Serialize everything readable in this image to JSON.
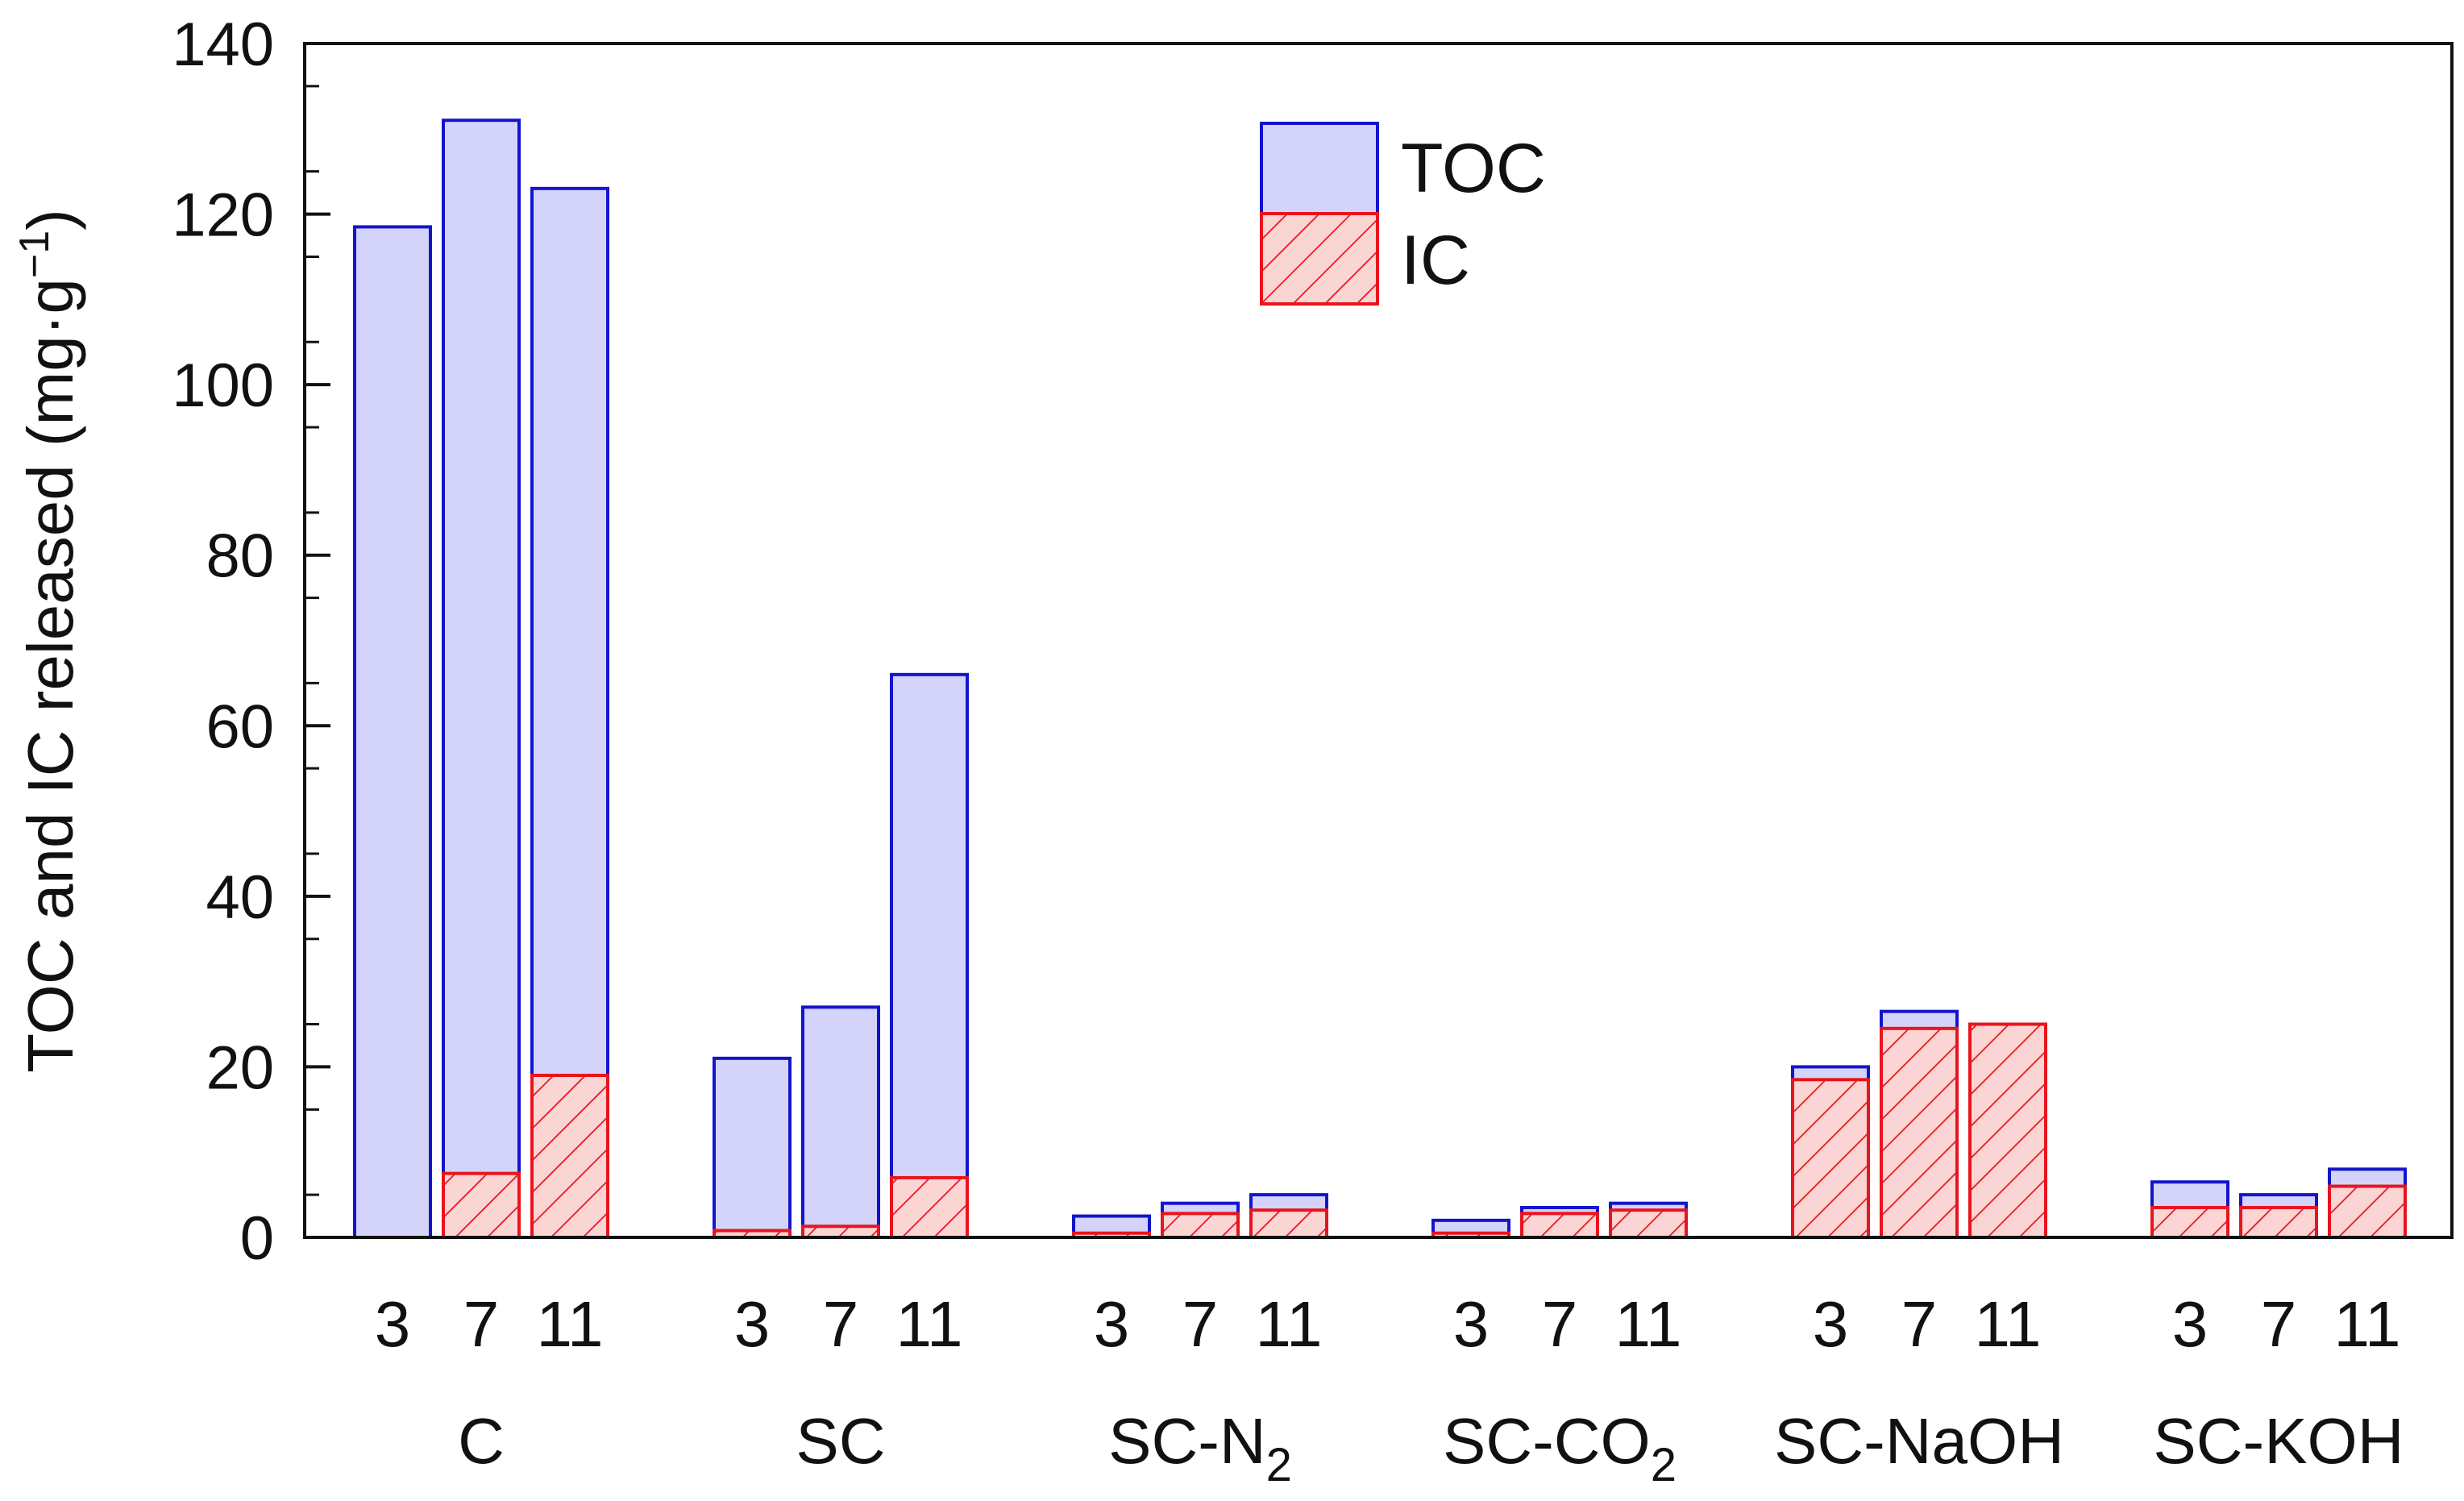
{
  "chart_data": {
    "type": "bar",
    "ylabel": "TOC and IC released (mg·g⁻¹)",
    "ylim": [
      0,
      140
    ],
    "yticks": [
      0,
      20,
      40,
      60,
      80,
      100,
      120,
      140
    ],
    "grid": false,
    "legend_position": "top-center",
    "positions": [
      "3",
      "7",
      "11"
    ],
    "groups": [
      {
        "label": "C",
        "name": "C",
        "sub": ""
      },
      {
        "label": "SC",
        "name": "SC",
        "sub": ""
      },
      {
        "label": "SC-N2",
        "name": "SC-N",
        "sub": "2"
      },
      {
        "label": "SC-CO2",
        "name": "SC-CO",
        "sub": "2"
      },
      {
        "label": "SC-NaOH",
        "name": "SC-NaOH",
        "sub": ""
      },
      {
        "label": "SC-KOH",
        "name": "SC-KOH",
        "sub": ""
      }
    ],
    "series": [
      {
        "name": "TOC",
        "fill": "#d4d4fb",
        "stroke": "#1414cc",
        "pattern": "solid",
        "values": [
          118.5,
          131,
          123,
          21,
          27,
          66,
          2.5,
          4,
          5,
          2,
          3.5,
          4,
          20,
          26.5,
          25,
          6.5,
          5,
          8
        ]
      },
      {
        "name": "IC",
        "fill": "#fbd4d4",
        "stroke": "#e8141e",
        "pattern": "hatched",
        "values": [
          0,
          7.5,
          19,
          0.8,
          1.3,
          7,
          0.5,
          2.8,
          3.2,
          0.5,
          2.8,
          3.2,
          18.5,
          24.5,
          25,
          3.5,
          3.5,
          6
        ]
      }
    ]
  }
}
